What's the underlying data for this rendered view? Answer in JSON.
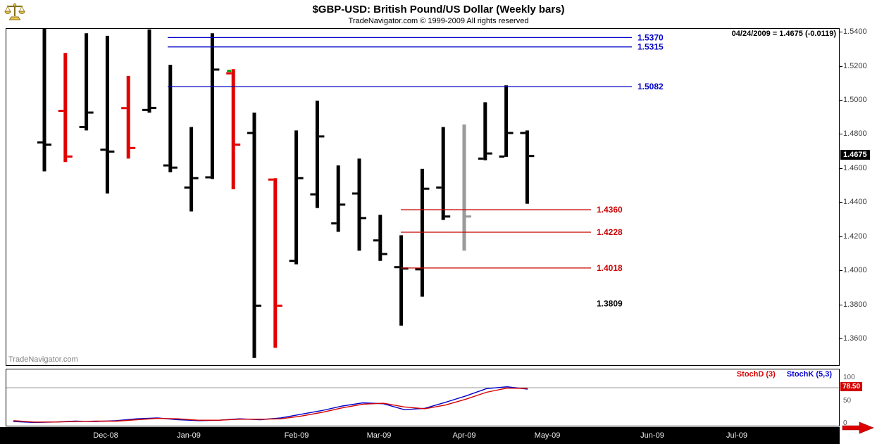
{
  "header": {
    "title": "$GBP-USD:  British Pound/US Dollar  (Weekly bars)",
    "subtitle": "TradeNavigator.com © 1999-2009 All rights reserved"
  },
  "quote_readout": "04/24/2009 = 1.4675 (-0.0119)",
  "watermark": "TradeNavigator.com",
  "price_badge": "1.4675",
  "stoch_badge": "78.50",
  "indicator_legend": {
    "stoch_d": "StochD (3)",
    "stoch_k": "StochK (5,3)"
  },
  "colors": {
    "up_bar": "#000000",
    "down_bar": "#e10000",
    "neutral_bar": "#9a9a9a",
    "resistance_line": "#0000c8",
    "support_line": "#c80000",
    "stoch_d": "#d40000",
    "stoch_k": "#0000cc",
    "signal_marker": "#00a000"
  },
  "chart_data": [
    {
      "type": "bar",
      "subtype": "ohlc-weekly",
      "title": "$GBP-USD British Pound/US Dollar (Weekly bars)",
      "ylim": [
        1.3448,
        1.5421
      ],
      "y_ticks": [
        1.54,
        1.52,
        1.5,
        1.48,
        1.46,
        1.44,
        1.42,
        1.4,
        1.38,
        1.36
      ],
      "last_date": "04/24/2009",
      "last_close": 1.4675,
      "change": -0.0119,
      "bars": [
        {
          "o": 1.4755,
          "h": 1.5435,
          "l": 1.4585,
          "c": 1.4742,
          "color": "up"
        },
        {
          "o": 1.494,
          "h": 1.528,
          "l": 1.464,
          "c": 1.4672,
          "color": "down"
        },
        {
          "o": 1.4845,
          "h": 1.5395,
          "l": 1.4825,
          "c": 1.493,
          "color": "up"
        },
        {
          "o": 1.4712,
          "h": 1.538,
          "l": 1.4455,
          "c": 1.4701,
          "color": "up"
        },
        {
          "o": 1.4956,
          "h": 1.5145,
          "l": 1.466,
          "c": 1.4722,
          "color": "down"
        },
        {
          "o": 1.4945,
          "h": 1.5418,
          "l": 1.493,
          "c": 1.4957,
          "color": "up"
        },
        {
          "o": 1.462,
          "h": 1.521,
          "l": 1.458,
          "c": 1.4607,
          "color": "up"
        },
        {
          "o": 1.449,
          "h": 1.4845,
          "l": 1.435,
          "c": 1.4545,
          "color": "up"
        },
        {
          "o": 1.455,
          "h": 1.5395,
          "l": 1.454,
          "c": 1.5182,
          "color": "up"
        },
        {
          "o": 1.516,
          "h": 1.5185,
          "l": 1.448,
          "c": 1.4742,
          "color": "down"
        },
        {
          "o": 1.481,
          "h": 1.493,
          "l": 1.349,
          "c": 1.3797,
          "color": "up"
        },
        {
          "o": 1.4537,
          "h": 1.4545,
          "l": 1.355,
          "c": 1.3797,
          "color": "down"
        },
        {
          "o": 1.406,
          "h": 1.4825,
          "l": 1.404,
          "c": 1.4545,
          "color": "up"
        },
        {
          "o": 1.445,
          "h": 1.5,
          "l": 1.437,
          "c": 1.479,
          "color": "up"
        },
        {
          "o": 1.428,
          "h": 1.462,
          "l": 1.423,
          "c": 1.439,
          "color": "up"
        },
        {
          "o": 1.4455,
          "h": 1.466,
          "l": 1.412,
          "c": 1.4311,
          "color": "up"
        },
        {
          "o": 1.418,
          "h": 1.433,
          "l": 1.406,
          "c": 1.41,
          "color": "up"
        },
        {
          "o": 1.4023,
          "h": 1.421,
          "l": 1.368,
          "c": 1.4015,
          "color": "up"
        },
        {
          "o": 1.401,
          "h": 1.46,
          "l": 1.385,
          "c": 1.4483,
          "color": "up"
        },
        {
          "o": 1.449,
          "h": 1.4845,
          "l": 1.43,
          "c": 1.432,
          "color": "up"
        },
        {
          "o": null,
          "h": 1.486,
          "l": 1.412,
          "c": 1.432,
          "color": "neutral"
        },
        {
          "o": 1.466,
          "h": 1.499,
          "l": 1.465,
          "c": 1.469,
          "color": "up"
        },
        {
          "o": 1.4672,
          "h": 1.509,
          "l": 1.467,
          "c": 1.481,
          "color": "up"
        },
        {
          "o": 1.481,
          "h": 1.4825,
          "l": 1.4395,
          "c": 1.4675,
          "color": "up"
        }
      ],
      "marker": {
        "bar_index": 9,
        "price": 1.5174,
        "color": "#00a000"
      },
      "levels": [
        {
          "value": 1.537,
          "label": "1.5370",
          "color": "#0000c8",
          "x1": 0.194,
          "x2": 0.751,
          "line": true
        },
        {
          "value": 1.5315,
          "label": "1.5315",
          "color": "#0000c8",
          "x1": 0.194,
          "x2": 0.751,
          "line": true
        },
        {
          "value": 1.5082,
          "label": "1.5082",
          "color": "#0000c8",
          "x1": 0.194,
          "x2": 0.751,
          "line": true
        },
        {
          "value": 1.436,
          "label": "1.4360",
          "color": "#c80000",
          "x1": 0.474,
          "x2": 0.702,
          "line": true
        },
        {
          "value": 1.4228,
          "label": "1.4228",
          "color": "#c80000",
          "x1": 0.474,
          "x2": 0.702,
          "line": true
        },
        {
          "value": 1.4018,
          "label": "1.4018",
          "color": "#c80000",
          "x1": 0.474,
          "x2": 0.702,
          "line": true
        },
        {
          "value": 1.3809,
          "label": "1.3809",
          "color": "#000000",
          "x1": 0.702,
          "x2": 0.702,
          "line": false
        }
      ],
      "x_axis": {
        "labels": [
          "Dec-08",
          "Jan-09",
          "Feb-09",
          "Mar-09",
          "Apr-09",
          "May-09",
          "Jun-09",
          "Jul-09"
        ],
        "fracs": [
          0.12,
          0.22,
          0.349,
          0.448,
          0.551,
          0.651,
          0.777,
          0.878
        ]
      }
    },
    {
      "type": "line",
      "title": "Stochastics",
      "ylim": [
        0,
        100
      ],
      "y_ticks": [
        {
          "v": 100,
          "label": "100"
        },
        {
          "v": 50,
          "label": "50"
        },
        {
          "v": 0,
          "label": "0"
        }
      ],
      "reference_level": 80,
      "last_value_badge": "78.50",
      "series": [
        {
          "name": "StochD (3)",
          "color": "#d40000",
          "values": [
            8,
            5,
            5,
            6,
            7,
            7,
            10,
            13,
            12,
            9,
            9,
            11,
            11,
            12,
            18,
            26,
            36,
            44,
            46,
            38,
            34,
            42,
            55,
            70,
            79,
            78.5
          ]
        },
        {
          "name": "StochK (5,3)",
          "color": "#0000cc",
          "values": [
            6,
            4,
            5,
            7,
            6,
            8,
            12,
            14,
            10,
            8,
            9,
            12,
            10,
            14,
            22,
            30,
            40,
            47,
            45,
            32,
            35,
            48,
            62,
            78,
            82,
            77
          ]
        }
      ]
    }
  ]
}
